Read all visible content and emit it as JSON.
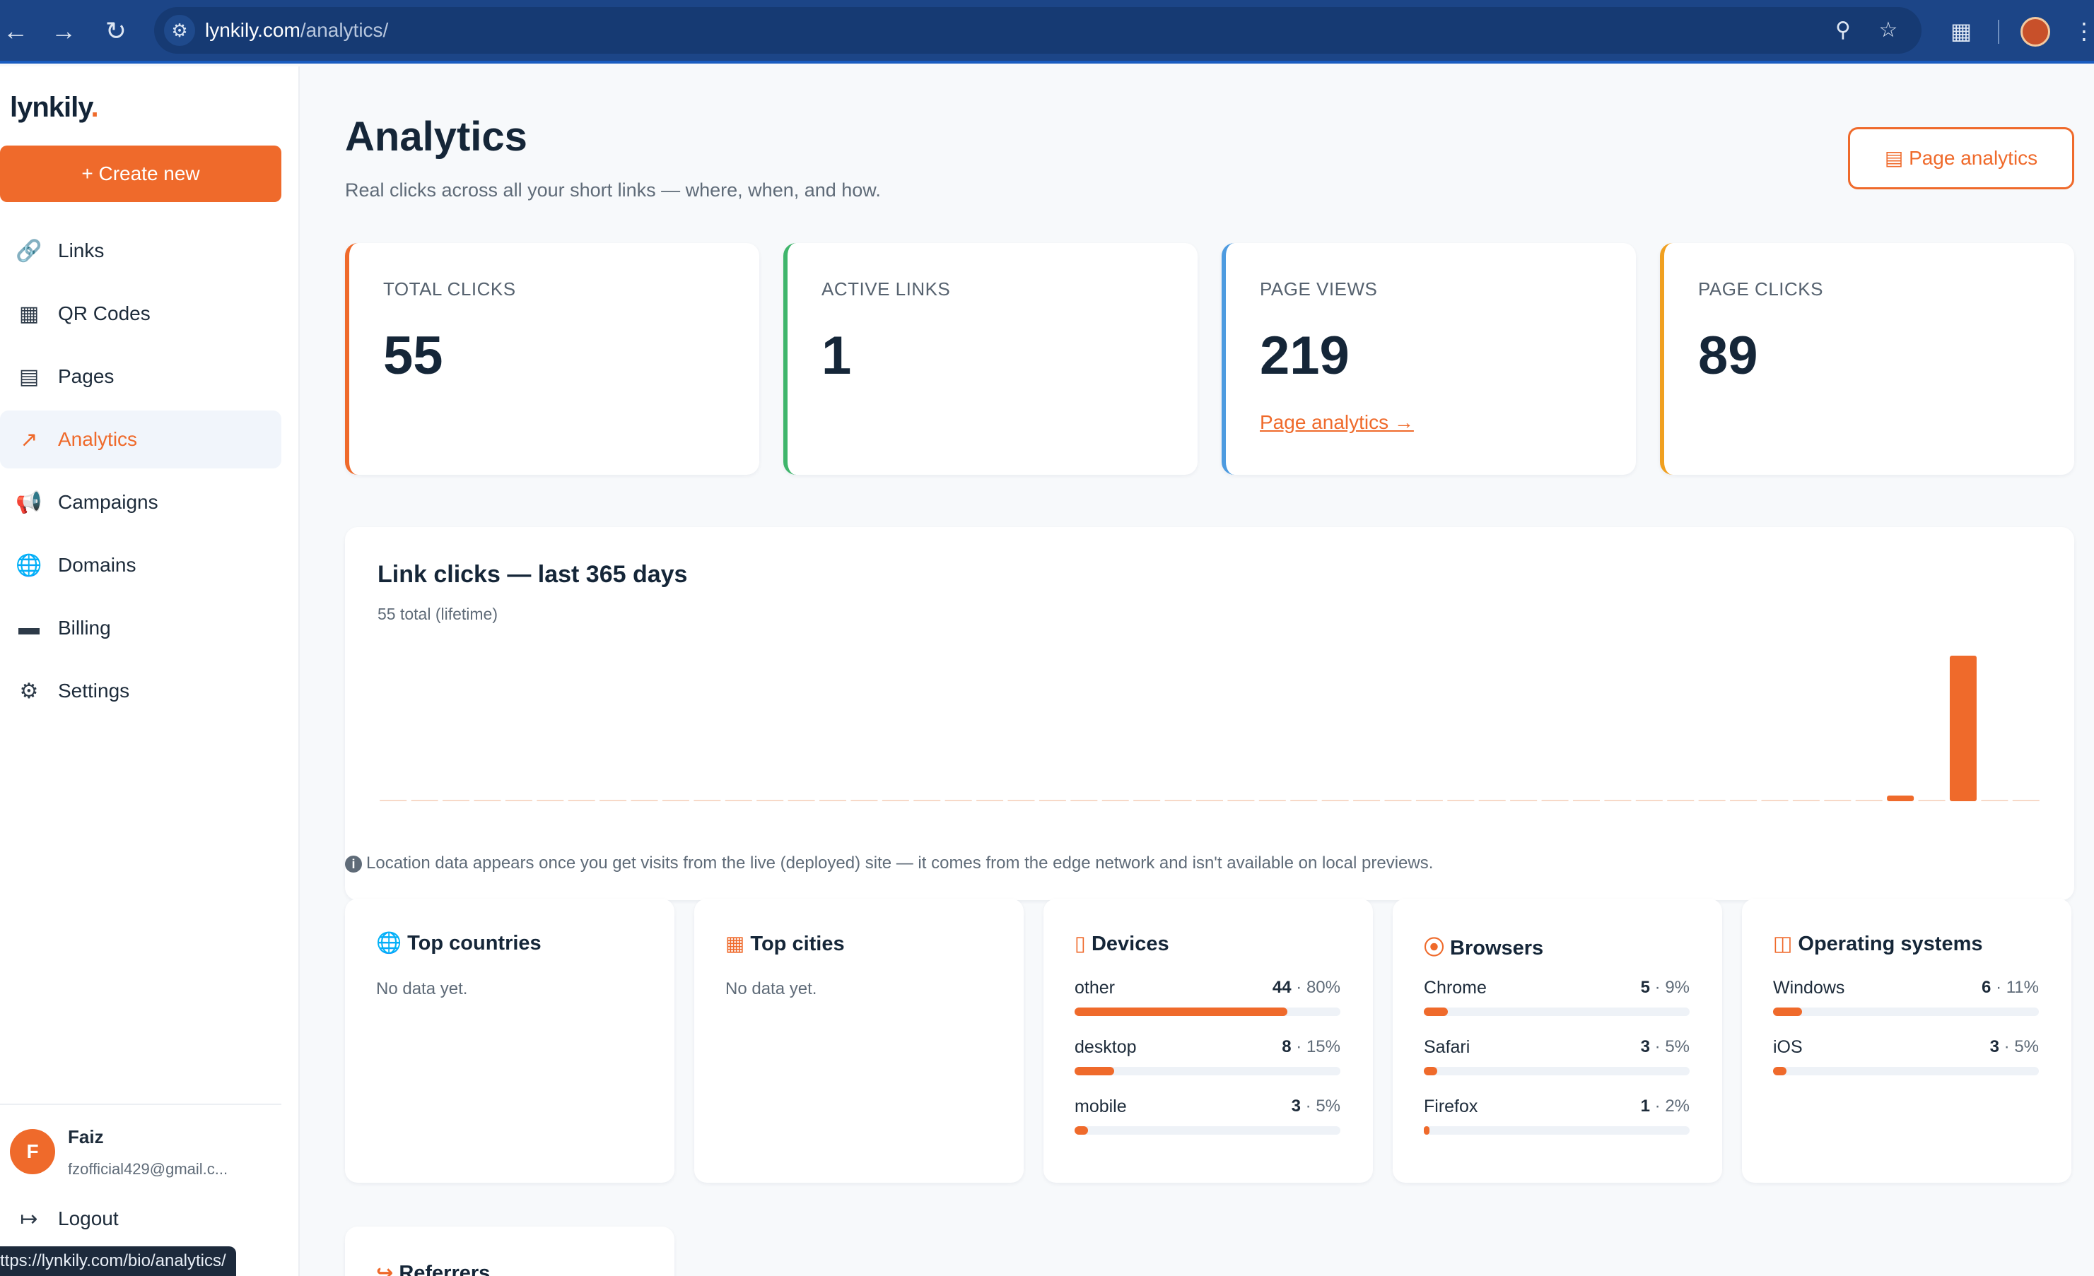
{
  "browser": {
    "url_domain": "lynkily.com",
    "url_path": "/analytics/",
    "status_url": "ttps://lynkily.com/bio/analytics/"
  },
  "sidebar": {
    "logo": "lynkily",
    "logo_dot": ".",
    "create_label": "Create new",
    "items": [
      {
        "label": "Links",
        "icon": "link-icon"
      },
      {
        "label": "QR Codes",
        "icon": "qr-code-icon"
      },
      {
        "label": "Pages",
        "icon": "id-card-icon"
      },
      {
        "label": "Analytics",
        "icon": "chart-line-icon",
        "active": true
      },
      {
        "label": "Campaigns",
        "icon": "megaphone-icon"
      },
      {
        "label": "Domains",
        "icon": "globe-icon"
      },
      {
        "label": "Billing",
        "icon": "credit-card-icon"
      },
      {
        "label": "Settings",
        "icon": "gear-icon"
      }
    ],
    "user": {
      "initial": "F",
      "name": "Faiz",
      "email": "fzofficial429@gmail.c..."
    },
    "logout_label": "Logout"
  },
  "header": {
    "title": "Analytics",
    "subtitle": "Real clicks across all your short links — where, when, and how.",
    "page_analytics_button": "Page analytics"
  },
  "stats": [
    {
      "label": "TOTAL CLICKS",
      "value": "55",
      "accent": "#ef6a2b"
    },
    {
      "label": "ACTIVE LINKS",
      "value": "1",
      "accent": "#3fb56b"
    },
    {
      "label": "PAGE VIEWS",
      "value": "219",
      "accent": "#4d9be0",
      "link": "Page analytics →"
    },
    {
      "label": "PAGE CLICKS",
      "value": "89",
      "accent": "#f0a020"
    }
  ],
  "chart": {
    "title": "Link clicks — last 365 days",
    "subtitle": "55 total (lifetime)"
  },
  "chart_data": {
    "type": "bar",
    "title": "Link clicks — last 365 days",
    "subtitle": "55 total (lifetime)",
    "bar_color": "#ef6a2b",
    "num_buckets": 53,
    "values": [
      0,
      0,
      0,
      0,
      0,
      0,
      0,
      0,
      0,
      0,
      0,
      0,
      0,
      0,
      0,
      0,
      0,
      0,
      0,
      0,
      0,
      0,
      0,
      0,
      0,
      0,
      0,
      0,
      0,
      0,
      0,
      0,
      0,
      0,
      0,
      0,
      0,
      0,
      0,
      0,
      0,
      0,
      0,
      0,
      0,
      0,
      0,
      0,
      1,
      0,
      54,
      0,
      0
    ],
    "ylim": [
      0,
      54
    ],
    "grid": false,
    "legend": "none"
  },
  "location_note": "Location data appears once you get visits from the live (deployed) site — it comes from the edge network and isn't available on local previews.",
  "breakdowns": {
    "countries": {
      "title": "Top countries",
      "icon": "globe-icon",
      "empty": "No data yet."
    },
    "cities": {
      "title": "Top cities",
      "icon": "city-icon",
      "empty": "No data yet."
    },
    "devices": {
      "title": "Devices",
      "icon": "phone-icon",
      "rows": [
        {
          "name": "other",
          "count": "44",
          "pct": "80%",
          "fraction": 0.8
        },
        {
          "name": "desktop",
          "count": "8",
          "pct": "15%",
          "fraction": 0.15
        },
        {
          "name": "mobile",
          "count": "3",
          "pct": "5%",
          "fraction": 0.05
        }
      ]
    },
    "browsers": {
      "title": "Browsers",
      "icon": "compass-icon",
      "rows": [
        {
          "name": "Chrome",
          "count": "5",
          "pct": "9%",
          "fraction": 0.09
        },
        {
          "name": "Safari",
          "count": "3",
          "pct": "5%",
          "fraction": 0.05
        },
        {
          "name": "Firefox",
          "count": "1",
          "pct": "2%",
          "fraction": 0.02
        }
      ]
    },
    "os": {
      "title": "Operating systems",
      "icon": "monitor-icon",
      "rows": [
        {
          "name": "Windows",
          "count": "6",
          "pct": "11%",
          "fraction": 0.11
        },
        {
          "name": "iOS",
          "count": "3",
          "pct": "5%",
          "fraction": 0.05
        }
      ]
    },
    "referrers": {
      "title": "Referrers",
      "icon": "share-icon"
    }
  }
}
